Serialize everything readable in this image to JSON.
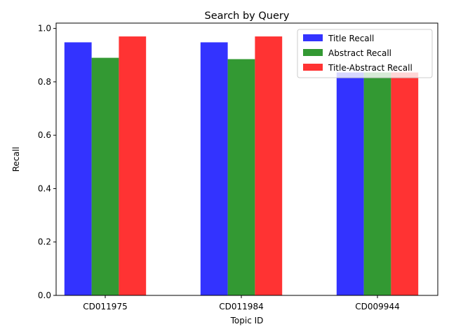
{
  "chart_data": {
    "type": "bar",
    "title": "Search by Query",
    "xlabel": "Topic ID",
    "ylabel": "Recall",
    "categories": [
      "CD011975",
      "CD011984",
      "CD009944"
    ],
    "series": [
      {
        "name": "Title Recall",
        "color": "#3333ff",
        "values": [
          0.948,
          0.948,
          0.835
        ]
      },
      {
        "name": "Abstract Recall",
        "color": "#339933",
        "values": [
          0.89,
          0.885,
          0.835
        ]
      },
      {
        "name": "Title-Abstract Recall",
        "color": "#ff3333",
        "values": [
          0.97,
          0.97,
          0.835
        ]
      }
    ],
    "ylim": [
      0,
      1.02
    ],
    "yticks": [
      0.0,
      0.2,
      0.4,
      0.6,
      0.8,
      1.0
    ],
    "ytick_labels": [
      "0.0",
      "0.2",
      "0.4",
      "0.6",
      "0.8",
      "1.0"
    ],
    "grid": false,
    "legend_position": "top-right"
  }
}
